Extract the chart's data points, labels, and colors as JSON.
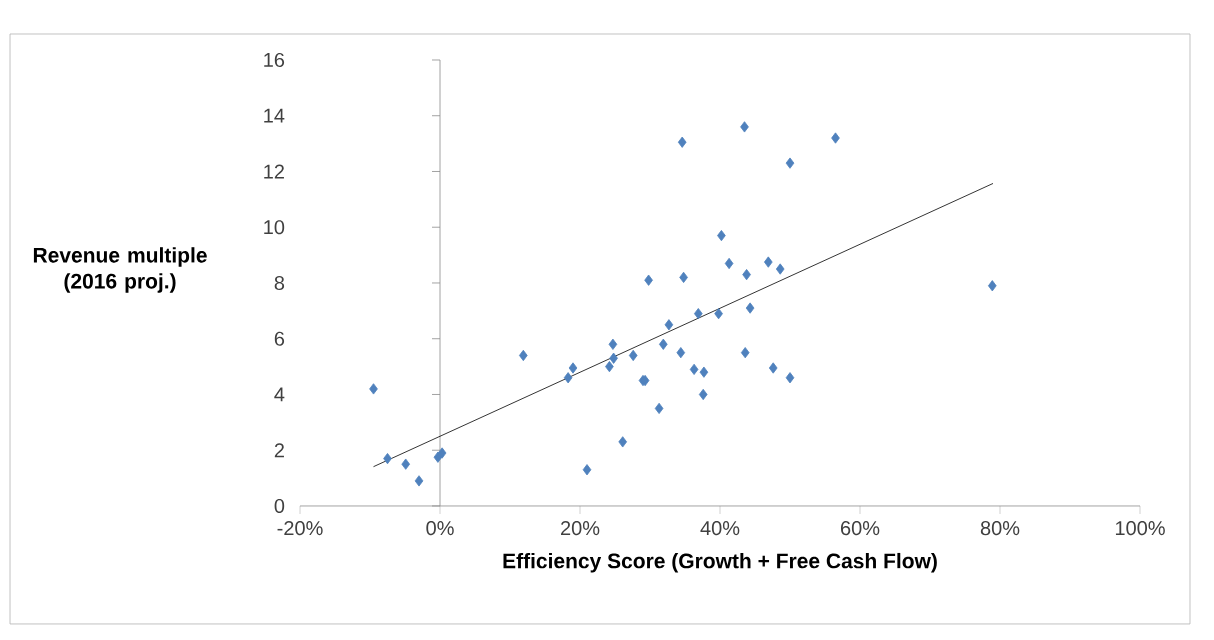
{
  "chart_data": {
    "type": "scatter",
    "xlabel": "Efficiency Score (Growth + Free Cash Flow)",
    "ylabel": "Revenue multiple (2016 proj.)",
    "xlim": [
      -20,
      100
    ],
    "ylim": [
      0,
      16
    ],
    "xticks": [
      {
        "value": -20,
        "label": "-20%"
      },
      {
        "value": 0,
        "label": "0%"
      },
      {
        "value": 20,
        "label": "20%"
      },
      {
        "value": 40,
        "label": "40%"
      },
      {
        "value": 60,
        "label": "60%"
      },
      {
        "value": 80,
        "label": "80%"
      },
      {
        "value": 100,
        "label": "100%"
      }
    ],
    "yticks": [
      0,
      2,
      4,
      6,
      8,
      10,
      12,
      14,
      16
    ],
    "marker": "diamond",
    "series": [
      {
        "color": "#4f81bd",
        "x": [
          -9.5,
          -7.5,
          -4.9,
          -3.0,
          -0.3,
          0.3,
          11.9,
          18.3,
          19.0,
          21.0,
          24.2,
          24.7,
          24.8,
          26.1,
          27.6,
          29.0,
          29.3,
          29.8,
          31.3,
          31.9,
          32.7,
          34.6,
          34.4,
          34.8,
          36.3,
          36.9,
          37.7,
          37.6,
          39.8,
          40.2,
          41.3,
          43.5,
          43.8,
          43.6,
          44.3,
          46.9,
          48.6,
          50.0,
          56.5,
          47.6,
          50.0,
          78.9
        ],
        "values": [
          4.2,
          1.7,
          1.5,
          0.9,
          1.75,
          1.9,
          5.4,
          4.6,
          4.95,
          1.3,
          5.0,
          5.8,
          5.3,
          2.3,
          5.4,
          4.5,
          4.5,
          8.1,
          3.5,
          5.8,
          6.5,
          13.05,
          5.5,
          8.2,
          4.9,
          6.9,
          4.8,
          4.0,
          6.9,
          9.7,
          8.7,
          13.6,
          8.3,
          5.5,
          7.1,
          8.75,
          8.5,
          12.3,
          13.2,
          4.95,
          4.6,
          7.9
        ]
      },
      {
        "type": "line",
        "marker": "none",
        "color": "#000000",
        "x": [
          -9.5,
          79.0
        ],
        "values": [
          1.41,
          11.57
        ]
      }
    ]
  }
}
